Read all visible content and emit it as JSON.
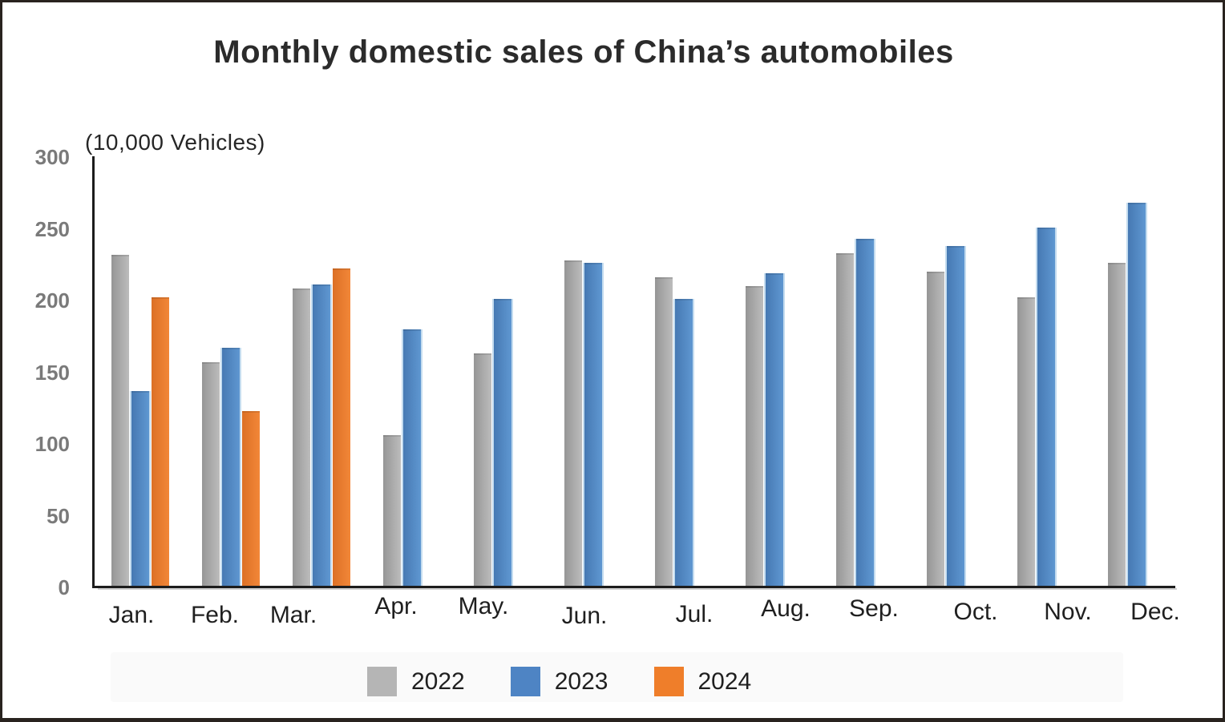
{
  "title": "Monthly domestic sales of China’s automobiles",
  "legend": [
    {
      "label": "2022",
      "color": "#b5b5b5"
    },
    {
      "label": "2023",
      "color": "#4e84c4"
    },
    {
      "label": "2024",
      "color": "#ef7e2a"
    }
  ],
  "chart_data": {
    "type": "bar",
    "title": "Monthly domestic sales of China’s automobiles",
    "ylabel": "(10,000 Vehicles)",
    "categories": [
      "Jan.",
      "Feb.",
      "Mar.",
      "Apr.",
      "May.",
      "Jun.",
      "Jul.",
      "Aug.",
      "Sep.",
      "Oct.",
      "Nov.",
      "Dec."
    ],
    "series": [
      {
        "name": "2022",
        "color": "#aeaeae",
        "values": [
          231,
          156,
          207,
          105,
          162,
          227,
          215,
          209,
          232,
          219,
          201,
          225
        ]
      },
      {
        "name": "2023",
        "color": "#4e86c4",
        "values": [
          136,
          166,
          210,
          179,
          200,
          225,
          200,
          218,
          242,
          237,
          250,
          267
        ]
      },
      {
        "name": "2024",
        "color": "#ee7d2e",
        "values": [
          201,
          122,
          221,
          null,
          null,
          null,
          null,
          null,
          null,
          null,
          null,
          null
        ]
      }
    ],
    "yticks": [
      0,
      50,
      100,
      150,
      200,
      250,
      300
    ],
    "ylim": [
      0,
      300
    ],
    "grid": false,
    "legend_position": "bottom"
  }
}
